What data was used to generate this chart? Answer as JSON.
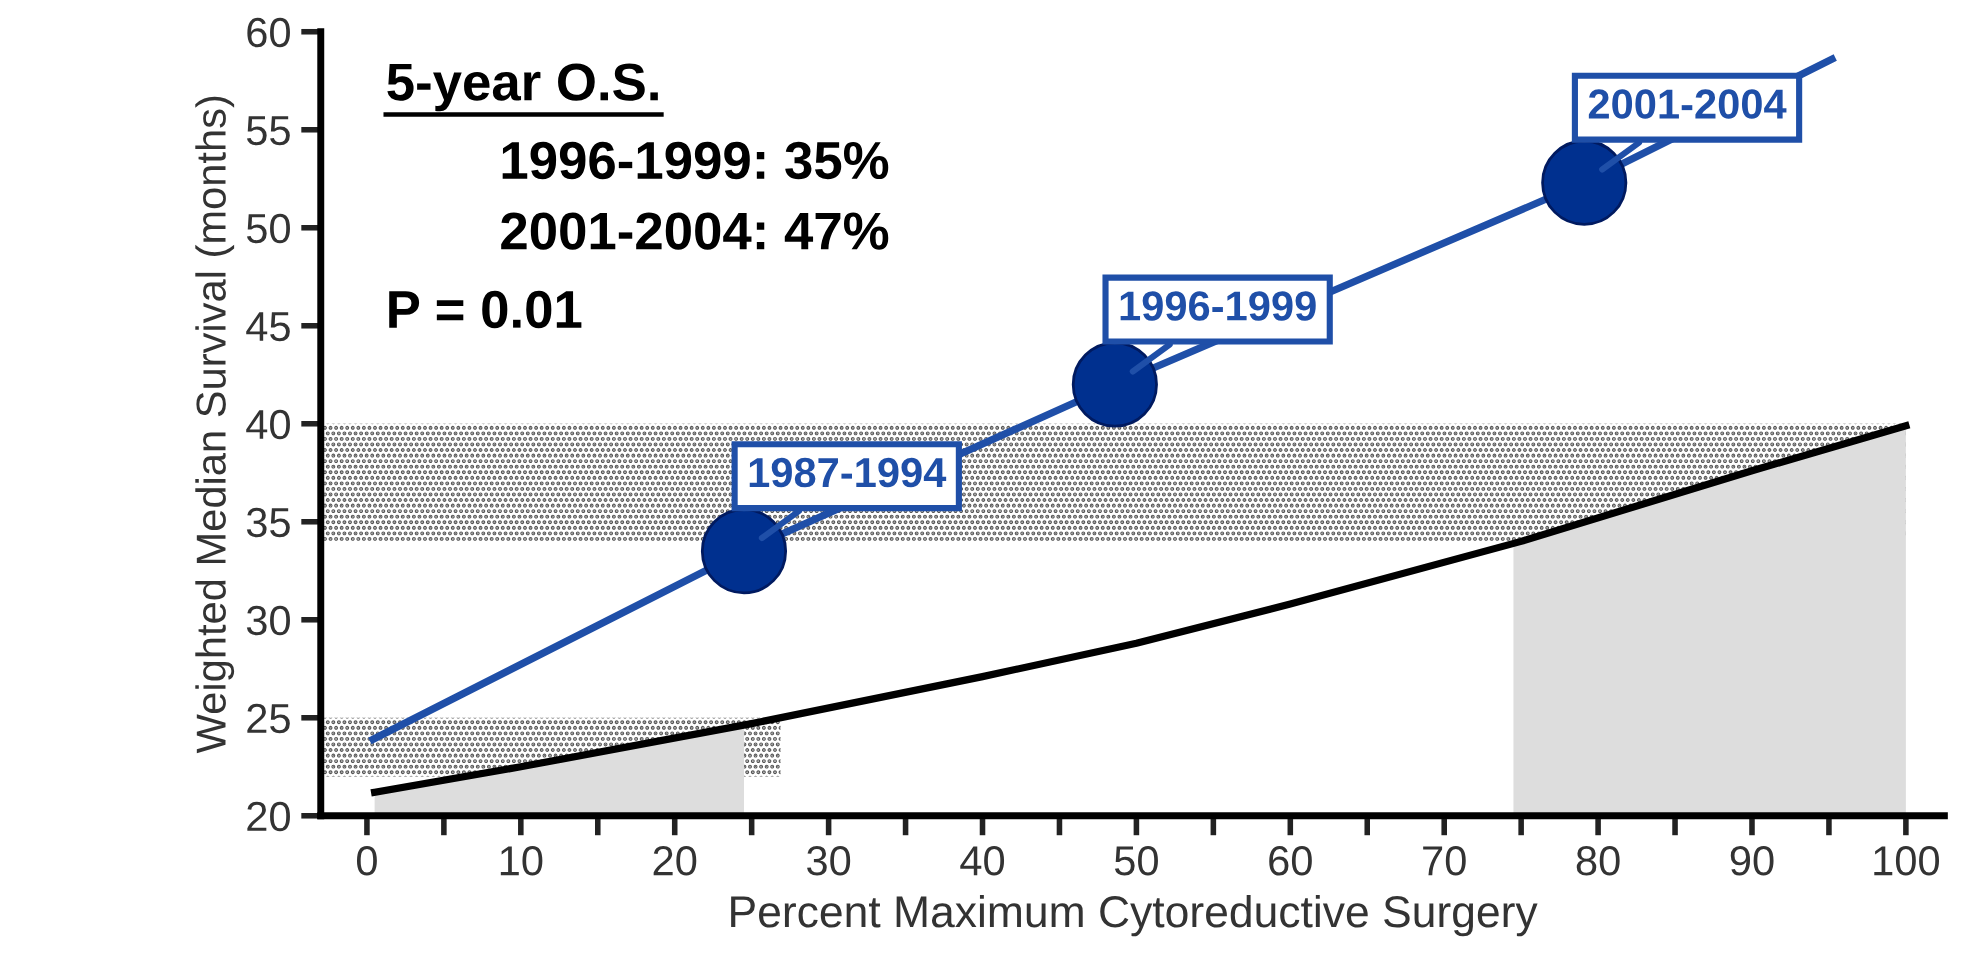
{
  "chart_data": {
    "type": "line",
    "xlabel": "Percent Maximum Cytoreductive Surgery",
    "ylabel": "Weighted Median Survival (months)",
    "xlim": [
      -3,
      102.5
    ],
    "ylim": [
      20,
      60
    ],
    "xticks": [
      0,
      {
        "value": 5,
        "label": null
      },
      10,
      {
        "value": 15,
        "label": null
      },
      20,
      {
        "value": 25,
        "label": null
      },
      30,
      {
        "value": 35,
        "label": null
      },
      40,
      {
        "value": 45,
        "label": null
      },
      50,
      {
        "value": 55,
        "label": null
      },
      60,
      {
        "value": 65,
        "label": null
      },
      70,
      {
        "value": 75,
        "label": null
      },
      80,
      {
        "value": 85,
        "label": null
      },
      90,
      {
        "value": 95,
        "label": null
      },
      100
    ],
    "yticks": [
      20,
      25,
      30,
      35,
      40,
      45,
      50,
      55,
      60
    ],
    "grid": false,
    "legend": false,
    "marker": "none",
    "line_style": "solid",
    "series": [
      {
        "type": "area",
        "color": "#dddddd",
        "x": [
          0.5,
          10,
          24.5
        ],
        "values": [
          21.2,
          22.5,
          24.6
        ]
      },
      {
        "type": "area",
        "color": "#dddddd",
        "x": [
          74.5,
          90,
          100
        ],
        "values": [
          33.9,
          37.6,
          39.9
        ]
      },
      {
        "color": "#000000",
        "x": [
          0.5,
          10,
          25,
          40,
          50,
          60,
          75,
          90,
          100
        ],
        "values": [
          21.2,
          22.5,
          24.7,
          27.1,
          28.8,
          30.8,
          34.0,
          37.6,
          39.9
        ]
      },
      {
        "color": "#1f4fa8",
        "x": [
          0.4,
          24.5,
          48.6,
          79.1,
          95.2
        ],
        "values": [
          23.9,
          33.5,
          42.0,
          52.3,
          58.6
        ]
      },
      {
        "type": "scatter",
        "color": "#00308f",
        "marker": "circle",
        "x": [
          24.5,
          48.6,
          79.1
        ],
        "values": [
          33.5,
          42.0,
          52.3
        ]
      }
    ],
    "bands": [
      {
        "axis": "y",
        "from": 34,
        "to": 40,
        "color": "#555555",
        "label": null
      },
      {
        "axis": "y",
        "from": 22,
        "to": 25,
        "color": "#555555",
        "label": null
      }
    ],
    "annotations": [
      "5-year O.S.",
      "1996-1999: 35%",
      "2001-2004: 47%",
      "P = 0.01",
      {
        "text": "1987-1994",
        "x": 24.5,
        "y": 33.5
      },
      {
        "text": "1996-1999",
        "x": 48.6,
        "y": 42.0
      },
      {
        "text": "2001-2004",
        "x": 79.1,
        "y": 52.3
      }
    ]
  }
}
